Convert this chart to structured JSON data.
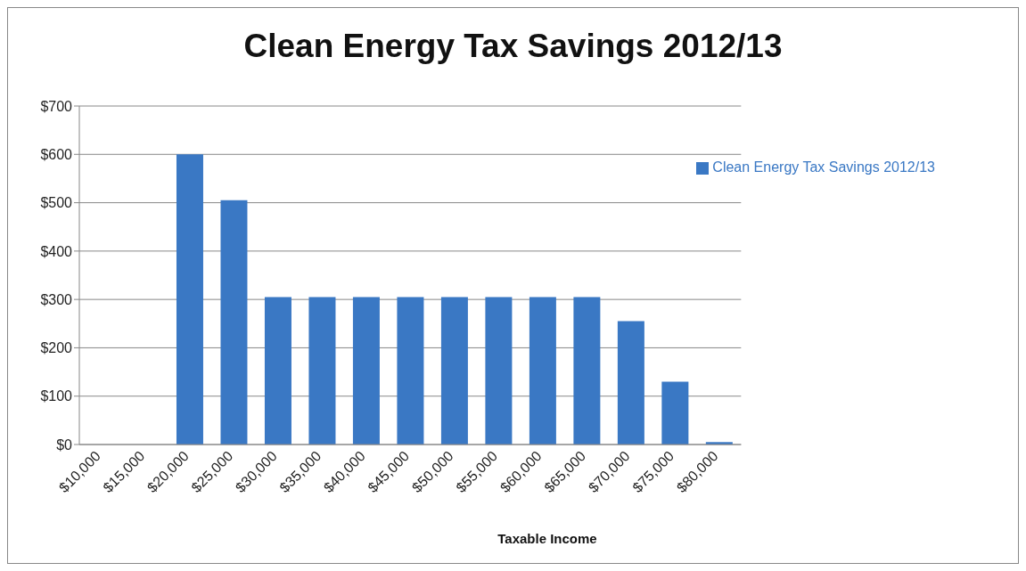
{
  "chart_data": {
    "type": "bar",
    "title": "Clean Energy Tax Savings 2012/13",
    "xlabel": "Taxable Income",
    "categories": [
      "$10,000",
      "$15,000",
      "$20,000",
      "$25,000",
      "$30,000",
      "$35,000",
      "$40,000",
      "$45,000",
      "$50,000",
      "$55,000",
      "$60,000",
      "$65,000",
      "$70,000",
      "$75,000",
      "$80,000"
    ],
    "series": [
      {
        "name": "Clean Energy Tax Savings 2012/13",
        "color": "#3a78c4",
        "values": [
          0,
          0,
          600,
          505,
          305,
          305,
          305,
          305,
          305,
          305,
          305,
          305,
          255,
          130,
          5
        ]
      }
    ],
    "ylim": [
      0,
      700
    ],
    "yticks": [
      {
        "value": 0,
        "label": "$0"
      },
      {
        "value": 100,
        "label": "$100"
      },
      {
        "value": 200,
        "label": "$200"
      },
      {
        "value": 300,
        "label": "$300"
      },
      {
        "value": 400,
        "label": "$400"
      },
      {
        "value": 500,
        "label": "$500"
      },
      {
        "value": 600,
        "label": "$600"
      },
      {
        "value": 700,
        "label": "$700"
      }
    ],
    "grid": "y",
    "legend": "top right"
  }
}
